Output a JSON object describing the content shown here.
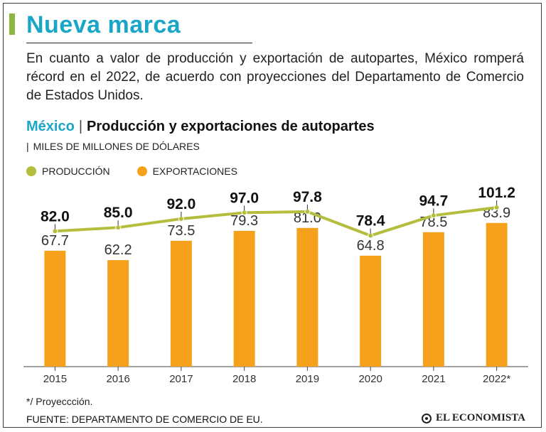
{
  "header": {
    "title": "Nueva marca",
    "intro": "En cuanto a valor de producción y exportación de autopartes, México romperá récord en el 2022, de acuerdo con proyecciones del Departamento de Comercio de Estados Unidos."
  },
  "chart_header": {
    "country": "México",
    "title": "Producción y exportaciones de autopartes",
    "unit": "MILES DE MILLONES DE DÓLARES"
  },
  "legend": {
    "production": "PRODUCCIÓN",
    "exports": "EXPORTACIONES"
  },
  "colors": {
    "title": "#1aa6c6",
    "accent": "#8cb63c",
    "production": "#b5bd3d",
    "exports": "#f5a11c",
    "axis": "#444444"
  },
  "chart_data": {
    "type": "bar",
    "categories": [
      "2015",
      "2016",
      "2017",
      "2018",
      "2019",
      "2020",
      "2021",
      "2022*"
    ],
    "series": [
      {
        "name": "PRODUCCIÓN",
        "type": "line",
        "values": [
          82.0,
          85.0,
          92.0,
          97.0,
          97.8,
          78.4,
          94.7,
          101.2
        ],
        "labels": [
          "82.0",
          "85.0",
          "92.0",
          "97.0",
          "97.8",
          "78.4",
          "94.7",
          "101.2"
        ]
      },
      {
        "name": "EXPORTACIONES",
        "type": "bar",
        "values": [
          67.7,
          62.2,
          73.5,
          79.3,
          81.0,
          64.8,
          78.5,
          83.9
        ],
        "labels": [
          "67.7",
          "62.2",
          "73.5",
          "79.3",
          "81.0",
          "64.8",
          "78.5",
          "83.9"
        ]
      }
    ],
    "ylabel": "MILES DE MILLONES DE DÓLARES",
    "ylim": [
      0,
      100
    ]
  },
  "footnote": "*/ Proyeccción.",
  "source": "FUENTE: DEPARTAMENTO DE COMERCIO DE EU.",
  "brand": "EL ECONOMISTA"
}
